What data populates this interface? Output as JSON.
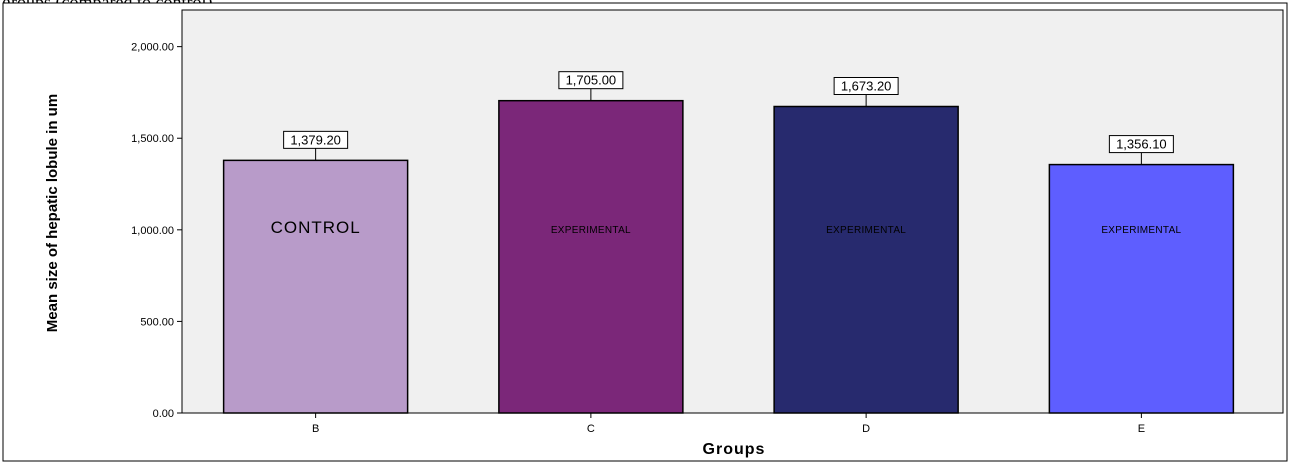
{
  "header": {
    "text": "groups (compared to control)"
  },
  "chart_data": {
    "type": "bar",
    "xlabel": "Groups",
    "ylabel": "Mean size of hepatic lobule in um",
    "ylim": [
      0,
      2200
    ],
    "yticks": [
      0,
      500,
      1000,
      1500,
      2000
    ],
    "ytick_labels": [
      "0.00",
      "500.00",
      "1,000.00",
      "1,500.00",
      "2,000.00"
    ],
    "categories": [
      "B",
      "C",
      "D",
      "E"
    ],
    "values": [
      1379.2,
      1705.0,
      1673.2,
      1356.1
    ],
    "value_labels": [
      "1,379.20",
      "1,705.00",
      "1,673.20",
      "1,356.10"
    ],
    "bar_texts": [
      "CONTROL",
      "EXPERIMENTAL",
      "EXPERIMENTAL",
      "EXPERIMENTAL"
    ],
    "bar_colors": [
      "#b89bc9",
      "#7b2779",
      "#272a6e",
      "#5e5eff"
    ],
    "plot_background": "#f0f0f0",
    "grid": false,
    "legend": "none"
  }
}
